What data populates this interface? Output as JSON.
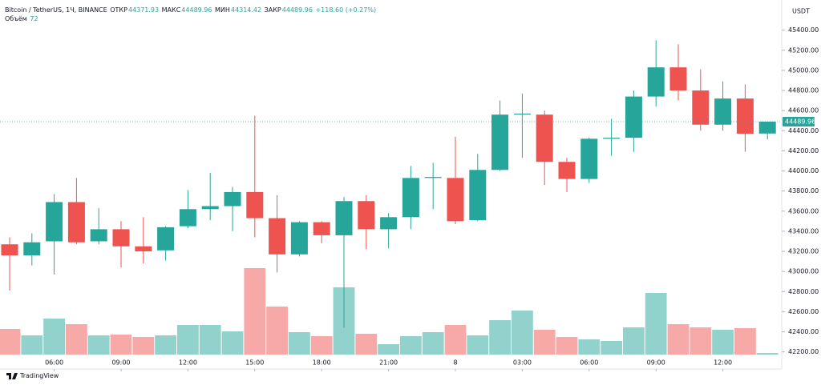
{
  "chart_data": {
    "type": "candlestick",
    "title": "Bitcoin / TetherUS, 1Ч, BINANCE",
    "ohlc_labels": [
      "ОТКР",
      "МАКС",
      "МИН",
      "ЗАКР"
    ],
    "change": "+118.60 (+0.27%)",
    "volume_label": "Объём",
    "currency": "USDT",
    "brand": "TradingView",
    "categories": [
      null,
      null,
      "06:00",
      null,
      null,
      "09:00",
      null,
      null,
      "12:00",
      null,
      null,
      "15:00",
      null,
      null,
      "18:00",
      null,
      null,
      "21:00",
      null,
      null,
      "8",
      null,
      null,
      "03:00",
      null,
      null,
      "06:00",
      null,
      null,
      "09:00",
      null,
      null,
      "12:00",
      null,
      null
    ],
    "open": [
      43270,
      43160,
      43300,
      43690,
      43300,
      43420,
      43250,
      43210,
      43450,
      43620,
      43650,
      43790,
      43530,
      43170,
      43490,
      43360,
      43700,
      43420,
      43540,
      43930,
      43930,
      43510,
      44010,
      44560,
      44560,
      44090,
      43920,
      44320,
      44330,
      44740,
      45030,
      44800,
      44460,
      44720,
      44371.93
    ],
    "high": [
      43340,
      43380,
      43770,
      43930,
      43630,
      43500,
      43540,
      43450,
      43810,
      43980,
      43840,
      44550,
      43760,
      43500,
      43500,
      43740,
      43760,
      43580,
      44050,
      44080,
      44340,
      44170,
      44700,
      44770,
      44600,
      44130,
      44330,
      44520,
      44800,
      45300,
      45260,
      45010,
      44890,
      44860,
      44489.96
    ],
    "low": [
      42810,
      43060,
      42970,
      43270,
      43270,
      43040,
      43080,
      43110,
      43430,
      43510,
      43400,
      43340,
      42990,
      43150,
      43280,
      42440,
      43220,
      43230,
      43420,
      43620,
      43470,
      43500,
      44000,
      44130,
      43860,
      43790,
      43880,
      44150,
      44190,
      44640,
      44700,
      44400,
      44400,
      44190,
      44314.42
    ],
    "close": [
      43160,
      43290,
      43690,
      43290,
      43420,
      43250,
      43200,
      43440,
      43620,
      43650,
      43790,
      43530,
      43170,
      43490,
      43360,
      43700,
      43420,
      43540,
      43930,
      43940,
      43500,
      44010,
      44560,
      44570,
      44090,
      43920,
      44320,
      44330,
      44740,
      45030,
      44800,
      44460,
      44720,
      44370,
      44489.96
    ],
    "volume": [
      1152,
      864,
      1620,
      1368,
      864,
      900,
      792,
      864,
      1332,
      1332,
      1044,
      3888,
      2160,
      1008,
      828,
      3024,
      936,
      468,
      828,
      1008,
      1332,
      864,
      1548,
      1980,
      1116,
      792,
      684,
      612,
      1224,
      2772,
      1368,
      1224,
      1116,
      1188,
      72
    ],
    "up_color": "#26a69a",
    "down_color": "#ef5350",
    "ylim": [
      42030,
      45700
    ],
    "yticks": [
      {
        "value": 42200,
        "label": "42200.00"
      },
      {
        "value": 42400,
        "label": "42400.00"
      },
      {
        "value": 42600,
        "label": "42600.00"
      },
      {
        "value": 42800,
        "label": "42800.00"
      },
      {
        "value": 43000,
        "label": "43000.00"
      },
      {
        "value": 43200,
        "label": "43200.00"
      },
      {
        "value": 43400,
        "label": "43400.00"
      },
      {
        "value": 43600,
        "label": "43600.00"
      },
      {
        "value": 43800,
        "label": "43800.00"
      },
      {
        "value": 44000,
        "label": "44000.00"
      },
      {
        "value": 44200,
        "label": "44200.00"
      },
      {
        "value": 44400,
        "label": "44400.00"
      },
      {
        "value": 44600,
        "label": "44600.00"
      },
      {
        "value": 44800,
        "label": "44800.00"
      },
      {
        "value": 45000,
        "label": "45000.00"
      },
      {
        "value": 45200,
        "label": "45200.00"
      },
      {
        "value": 45400,
        "label": "45400.00"
      }
    ]
  }
}
